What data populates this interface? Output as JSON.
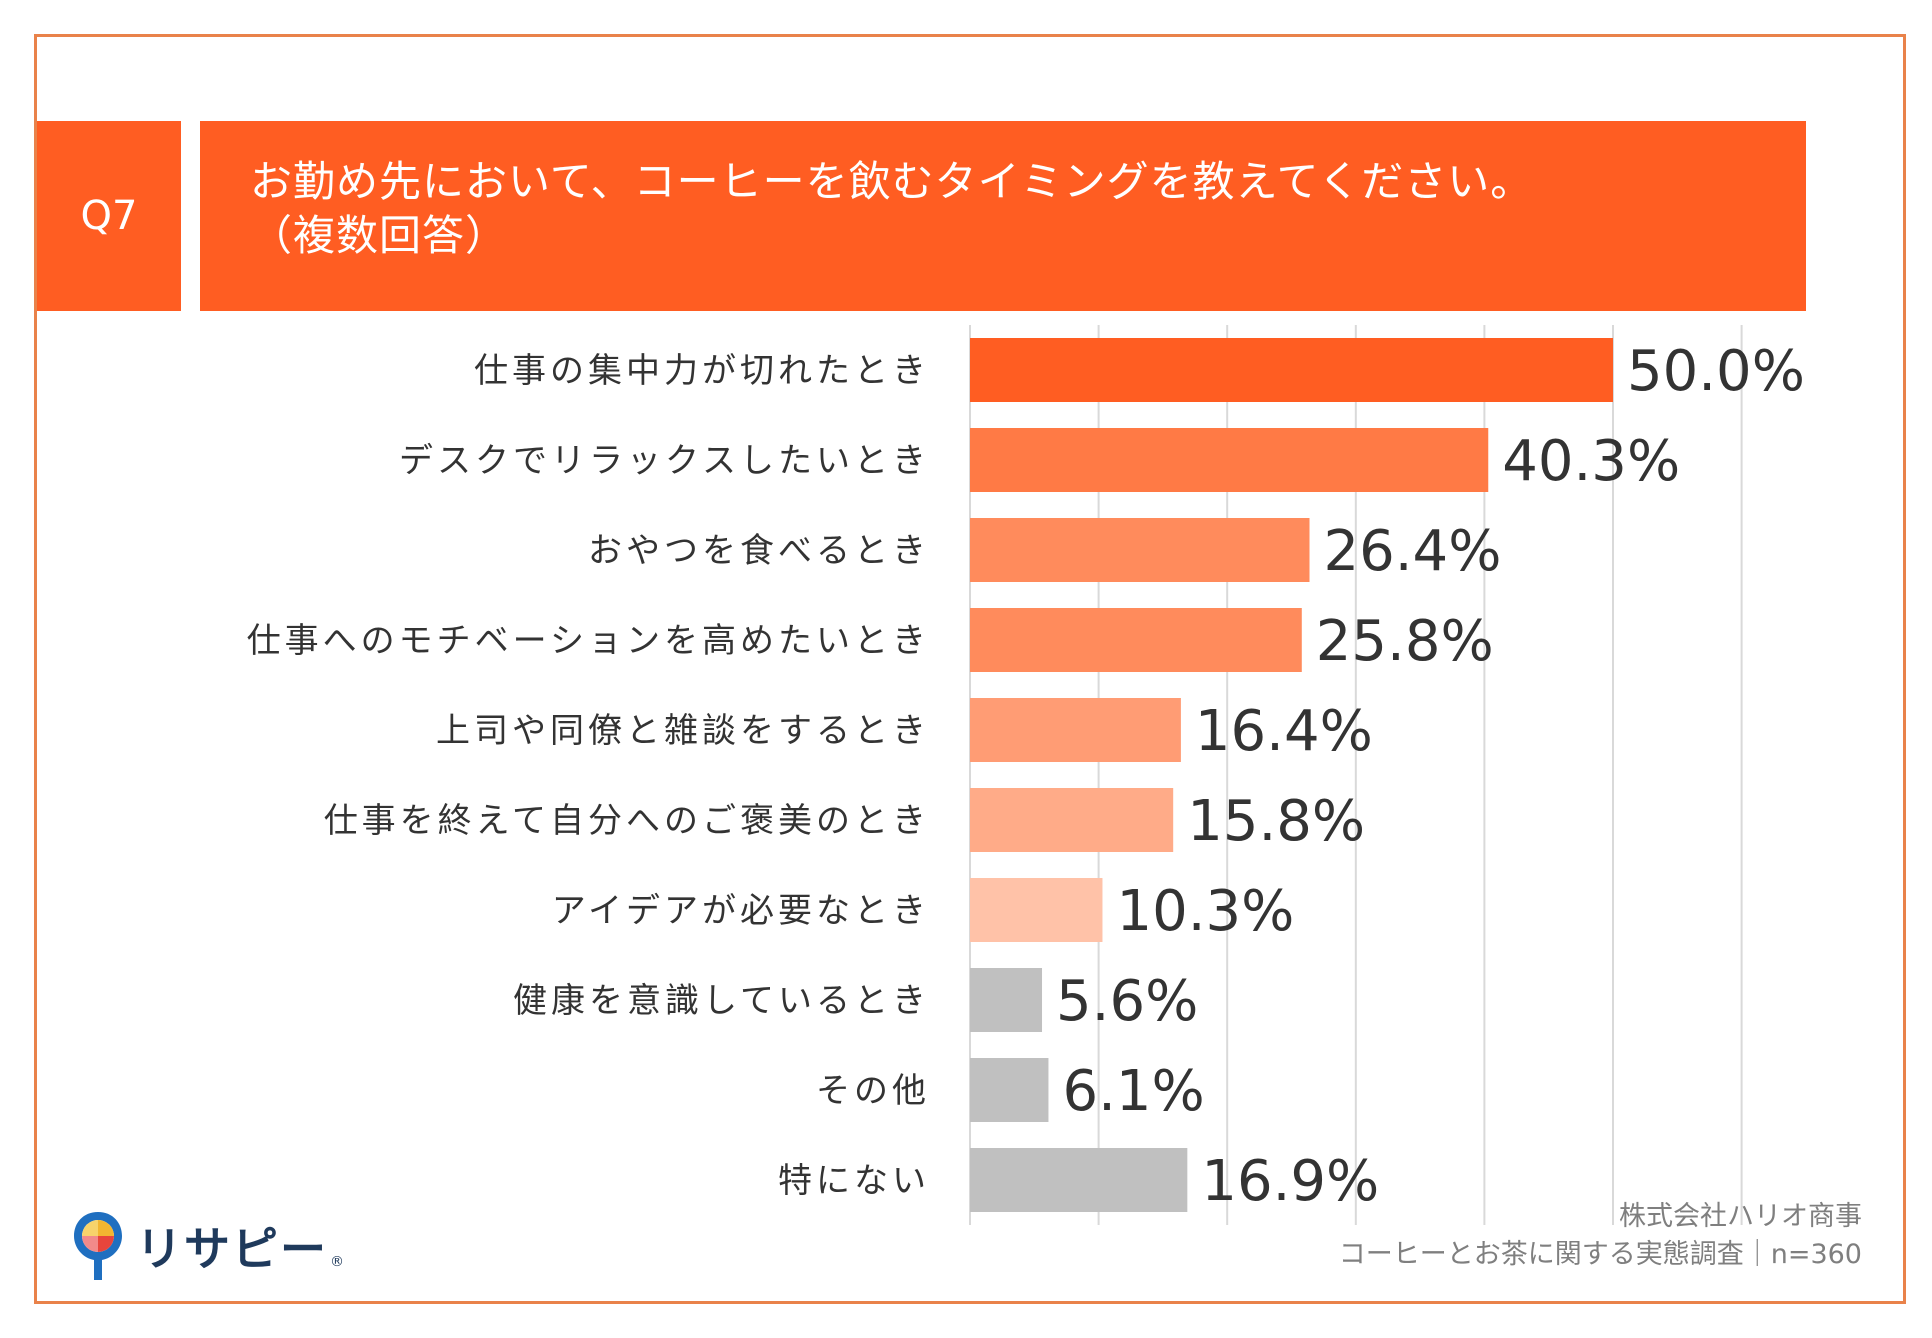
{
  "header": {
    "question_no": "Q7",
    "title_line1": "お勤め先において、コーヒーを飲むタイミングを教えてください。",
    "title_line2": "（複数回答）",
    "accent_color": "#ff5d22"
  },
  "chart_data": {
    "type": "bar",
    "orientation": "horizontal",
    "title": "お勤め先において、コーヒーを飲むタイミングを教えてください。（複数回答）",
    "categories": [
      "仕事の集中力が切れたとき",
      "デスクでリラックスしたいとき",
      "おやつを食べるとき",
      "仕事へのモチベーションを高めたいとき",
      "上司や同僚と雑談をするとき",
      "仕事を終えて自分へのご褒美のとき",
      "アイデアが必要なとき",
      "健康を意識しているとき",
      "その他",
      "特にない"
    ],
    "values": [
      50.0,
      40.3,
      26.4,
      25.8,
      16.4,
      15.8,
      10.3,
      5.6,
      6.1,
      16.9
    ],
    "value_labels": [
      "50.0%",
      "40.3%",
      "26.4%",
      "25.8%",
      "16.4%",
      "15.8%",
      "10.3%",
      "5.6%",
      "6.1%",
      "16.9%"
    ],
    "colors": [
      "#ff5d22",
      "#ff7a45",
      "#ff8b5c",
      "#ff8b5c",
      "#ff9c74",
      "#ffab88",
      "#ffc2a8",
      "#c0c0c0",
      "#c0c0c0",
      "#c0c0c0"
    ],
    "xlim": [
      0,
      60
    ],
    "grid_step": 10,
    "grid": true,
    "xlabel": "",
    "ylabel": ""
  },
  "source": {
    "line1": "株式会社ハリオ商事",
    "line2": "コーヒーとお茶に関する実態調査｜n=360"
  },
  "logo": {
    "text": "リサピー",
    "mark": "®",
    "icon": "pin-logo-icon"
  }
}
